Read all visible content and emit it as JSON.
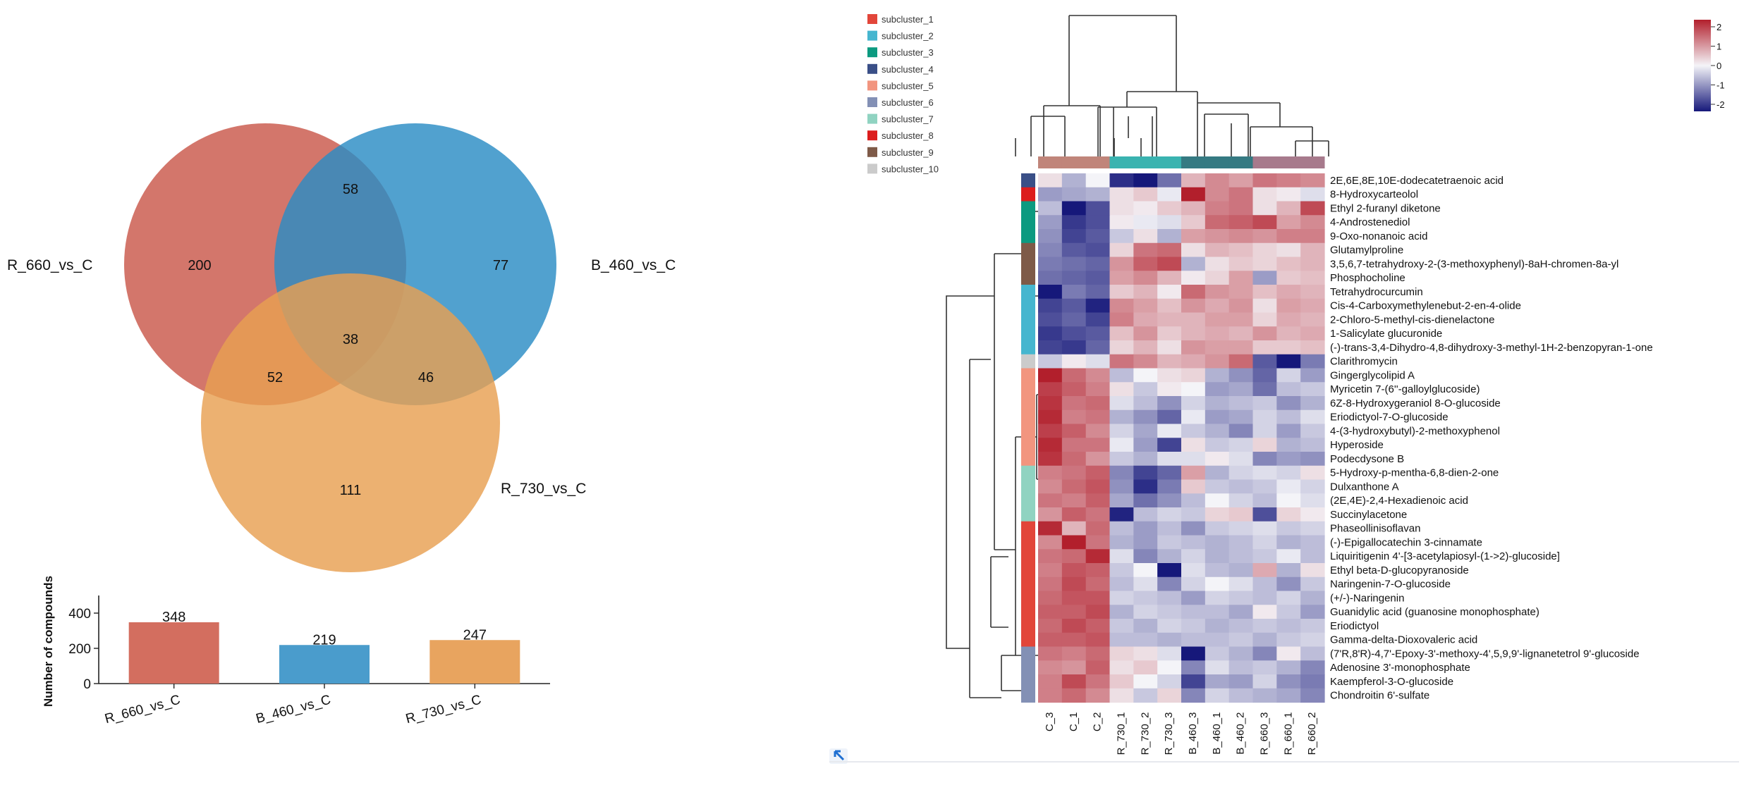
{
  "venn": {
    "sets": [
      {
        "name": "R_660_vs_C",
        "only": 200,
        "color": "#c9584a"
      },
      {
        "name": "B_460_vs_C",
        "only": 77,
        "color": "#2b8cc4"
      },
      {
        "name": "R_730_vs_C",
        "only": 111,
        "color": "#e8a052"
      }
    ],
    "ab": 58,
    "ac": 52,
    "bc": 46,
    "abc": 38
  },
  "chart_data": [
    {
      "type": "bar",
      "title": "",
      "xlabel": "",
      "ylabel": "Number of compounds",
      "categories": [
        "R_660_vs_C",
        "B_460_vs_C",
        "R_730_vs_C"
      ],
      "values": [
        348,
        219,
        247
      ],
      "colors": [
        "#d36e5f",
        "#4a9ccc",
        "#e8a45f"
      ],
      "ylim": [
        0,
        480
      ],
      "yticks": [
        0,
        200,
        400
      ]
    },
    {
      "type": "heatmap",
      "title": "",
      "columns": [
        "C_3",
        "C_1",
        "C_2",
        "R_730_1",
        "R_730_2",
        "R_730_3",
        "B_460_3",
        "B_460_1",
        "B_460_2",
        "R_660_3",
        "R_660_1",
        "R_660_2"
      ],
      "column_groups": [
        "#c0857a",
        "#c0857a",
        "#c0857a",
        "#39b3b0",
        "#39b3b0",
        "#39b3b0",
        "#357a82",
        "#357a82",
        "#357a82",
        "#a77a8c",
        "#a77a8c",
        "#a77a8c"
      ],
      "scale": {
        "min": -2,
        "max": 2,
        "ticks": [
          "2",
          "1",
          "0",
          "-1",
          "-2"
        ],
        "low": "#16187a",
        "mid": "#f4f4f8",
        "high": "#b21f2c"
      },
      "subclusters": [
        {
          "name": "subcluster_1",
          "color": "#e2463a"
        },
        {
          "name": "subcluster_2",
          "color": "#46b6cf"
        },
        {
          "name": "subcluster_3",
          "color": "#0c9a80"
        },
        {
          "name": "subcluster_4",
          "color": "#3a4f87"
        },
        {
          "name": "subcluster_5",
          "color": "#f2957f"
        },
        {
          "name": "subcluster_6",
          "color": "#8390b5"
        },
        {
          "name": "subcluster_7",
          "color": "#90d3c1"
        },
        {
          "name": "subcluster_8",
          "color": "#dc1d1d"
        },
        {
          "name": "subcluster_9",
          "color": "#7e5a48"
        },
        {
          "name": "subcluster_10",
          "color": "#cbcbcb"
        }
      ],
      "rows": [
        {
          "name": "2E,6E,8E,10E-dodecatetraenoic acid",
          "cluster": 4,
          "values": [
            0.2,
            -0.6,
            0.0,
            -1.8,
            -2.0,
            -1.2,
            0.6,
            1.0,
            0.8,
            1.2,
            1.1,
            1.0
          ]
        },
        {
          "name": "8-Hydroxycarteolol",
          "cluster": 8,
          "values": [
            -0.8,
            -0.7,
            -0.6,
            0.2,
            0.4,
            -0.1,
            2.0,
            1.0,
            1.2,
            0.2,
            0.1,
            -0.2
          ]
        },
        {
          "name": "Ethyl 2-furanyl diketone",
          "cluster": 3,
          "values": [
            -0.5,
            -2.0,
            -1.5,
            0.2,
            0.1,
            0.4,
            0.6,
            1.1,
            1.2,
            0.2,
            0.6,
            1.6
          ]
        },
        {
          "name": "4-Androstenediol",
          "cluster": 3,
          "values": [
            -0.8,
            -1.7,
            -1.5,
            0.1,
            -0.1,
            -0.2,
            0.4,
            1.3,
            1.4,
            1.6,
            0.8,
            1.0
          ]
        },
        {
          "name": "9-Oxo-nonanoic acid",
          "cluster": 3,
          "values": [
            -0.9,
            -1.6,
            -1.4,
            -0.4,
            0.2,
            -0.6,
            0.8,
            0.9,
            1.0,
            0.9,
            1.1,
            1.1
          ]
        },
        {
          "name": "Glutamylproline",
          "cluster": 9,
          "values": [
            -1.0,
            -1.4,
            -1.5,
            0.3,
            1.2,
            1.3,
            0.2,
            0.6,
            0.5,
            0.3,
            0.2,
            0.6
          ]
        },
        {
          "name": "3,5,6,7-tetrahydroxy-2-(3-methoxyphenyl)-8aH-chromen-8a-yl",
          "cluster": 9,
          "values": [
            -1.1,
            -1.2,
            -1.3,
            0.9,
            1.4,
            1.6,
            -0.6,
            0.2,
            0.4,
            0.3,
            0.5,
            0.6
          ]
        },
        {
          "name": "Phosphocholine",
          "cluster": 9,
          "values": [
            -1.2,
            -1.3,
            -1.4,
            0.8,
            1.0,
            0.6,
            0.1,
            0.3,
            0.8,
            -0.8,
            0.4,
            0.5
          ]
        },
        {
          "name": "Tetrahydrocurcumin",
          "cluster": 2,
          "values": [
            -2.2,
            -1.1,
            -1.3,
            0.4,
            0.6,
            0.1,
            1.3,
            0.9,
            0.8,
            0.5,
            0.7,
            0.6
          ]
        },
        {
          "name": "Cis-4-Carboxymethylenebut-2-en-4-olide",
          "cluster": 2,
          "values": [
            -1.6,
            -1.4,
            -1.9,
            1.0,
            0.8,
            0.5,
            0.9,
            0.7,
            0.9,
            0.2,
            0.8,
            0.7
          ]
        },
        {
          "name": "2-Chloro-5-methyl-cis-dienelactone",
          "cluster": 2,
          "values": [
            -1.5,
            -1.3,
            -1.6,
            1.1,
            0.7,
            0.6,
            0.6,
            0.8,
            0.8,
            0.3,
            0.7,
            0.6
          ]
        },
        {
          "name": "1-Salicylate glucuronide",
          "cluster": 2,
          "values": [
            -1.7,
            -1.5,
            -1.4,
            0.5,
            0.9,
            0.4,
            0.6,
            0.7,
            0.6,
            0.9,
            0.6,
            0.7
          ]
        },
        {
          "name": "(-)-trans-3,4-Dihydro-4,8-dihydroxy-3-methyl-1H-2-benzopyran-1-one",
          "cluster": 2,
          "values": [
            -1.6,
            -1.7,
            -1.3,
            0.3,
            0.6,
            0.2,
            0.9,
            0.8,
            0.8,
            0.4,
            0.4,
            0.5
          ]
        },
        {
          "name": "Clarithromycin",
          "cluster": 10,
          "values": [
            -0.4,
            0.1,
            -0.2,
            1.2,
            1.0,
            0.6,
            0.7,
            0.9,
            1.3,
            -1.4,
            -2.0,
            -1.1
          ]
        },
        {
          "name": "Gingerglycolipid A",
          "cluster": 5,
          "values": [
            2.0,
            1.3,
            1.0,
            -0.5,
            0.0,
            0.2,
            0.3,
            -0.6,
            -0.9,
            -1.3,
            -0.3,
            -0.8
          ]
        },
        {
          "name": "Myricetin 7-(6''-galloylglucoside)",
          "cluster": 5,
          "values": [
            1.7,
            1.4,
            1.1,
            0.2,
            -0.4,
            0.1,
            0.0,
            -0.8,
            -0.7,
            -1.2,
            -0.5,
            -0.4
          ]
        },
        {
          "name": "6Z-8-Hydroxygeraniol 8-O-glucoside",
          "cluster": 5,
          "values": [
            1.8,
            1.2,
            1.3,
            -0.2,
            -0.5,
            -0.9,
            -0.3,
            -0.6,
            -0.5,
            -0.4,
            -0.9,
            -0.6
          ]
        },
        {
          "name": "Eriodictyol-7-O-glucoside",
          "cluster": 5,
          "values": [
            1.9,
            1.1,
            1.2,
            -0.6,
            -0.9,
            -1.3,
            -0.1,
            -0.8,
            -0.7,
            -0.3,
            -0.5,
            -0.2
          ]
        },
        {
          "name": "4-(3-hydroxybutyl)-2-methoxyphenol",
          "cluster": 5,
          "values": [
            1.7,
            1.4,
            1.0,
            -0.3,
            -0.7,
            -0.1,
            -0.4,
            -0.6,
            -1.0,
            -0.3,
            -0.8,
            -0.4
          ]
        },
        {
          "name": "Hyperoside",
          "cluster": 5,
          "values": [
            1.9,
            1.2,
            1.2,
            -0.1,
            -0.8,
            -1.6,
            0.2,
            -0.4,
            -0.3,
            0.3,
            -0.6,
            -0.5
          ]
        },
        {
          "name": "Podecdysone B",
          "cluster": 5,
          "values": [
            1.8,
            1.3,
            0.9,
            -0.4,
            -0.6,
            -0.2,
            -0.2,
            0.1,
            -0.2,
            -1.0,
            -0.8,
            -0.9
          ]
        },
        {
          "name": "5-Hydroxy-p-mentha-6,8-dien-2-one",
          "cluster": 7,
          "values": [
            1.1,
            1.2,
            1.4,
            -1.0,
            -1.6,
            -1.3,
            0.8,
            -0.6,
            -0.3,
            -0.2,
            -0.3,
            0.2
          ]
        },
        {
          "name": "Dulxanthone A",
          "cluster": 7,
          "values": [
            1.0,
            1.3,
            1.5,
            -0.9,
            -1.8,
            -1.1,
            0.4,
            -0.4,
            -0.5,
            -0.4,
            -0.1,
            -0.3
          ]
        },
        {
          "name": "(2E,4E)-2,4-Hexadienoic acid",
          "cluster": 7,
          "values": [
            1.2,
            1.1,
            1.4,
            -0.7,
            -1.2,
            -0.9,
            -0.5,
            0.0,
            -0.3,
            -0.5,
            0.0,
            -0.2
          ]
        },
        {
          "name": "Succinylacetone",
          "cluster": 7,
          "values": [
            0.9,
            1.4,
            1.2,
            -1.9,
            -0.5,
            -0.3,
            -0.4,
            0.3,
            0.4,
            -1.5,
            0.3,
            0.1
          ]
        },
        {
          "name": "Phaseollinisoflavan",
          "cluster": 1,
          "values": [
            1.9,
            0.6,
            1.3,
            -0.5,
            -0.8,
            -0.5,
            -0.9,
            -0.4,
            -0.3,
            -0.2,
            -0.4,
            -0.3
          ]
        },
        {
          "name": "(-)-Epigallocatechin 3-cinnamate",
          "cluster": 1,
          "values": [
            1.0,
            2.0,
            1.2,
            -0.6,
            -0.8,
            -0.4,
            -0.5,
            -0.6,
            -0.5,
            -0.3,
            -0.6,
            -0.5
          ]
        },
        {
          "name": "Liquiritigenin 4'-[3-acetylapiosyl-(1->2)-glucoside]",
          "cluster": 1,
          "values": [
            1.2,
            1.3,
            1.9,
            -0.2,
            -1.0,
            -0.6,
            -0.3,
            -0.6,
            -0.5,
            -0.4,
            -0.1,
            -0.5
          ]
        },
        {
          "name": "Ethyl beta-D-glucopyranoside",
          "cluster": 1,
          "values": [
            1.1,
            1.5,
            1.4,
            -0.4,
            0.0,
            -2.0,
            -0.2,
            -0.5,
            -0.6,
            0.7,
            -0.6,
            0.2
          ]
        },
        {
          "name": "Naringenin-7-O-glucoside",
          "cluster": 1,
          "values": [
            1.2,
            1.6,
            1.3,
            -0.5,
            -0.2,
            -1.0,
            -0.3,
            0.0,
            -0.2,
            -0.5,
            -0.9,
            -0.4
          ]
        },
        {
          "name": "(+/-)-Naringenin",
          "cluster": 1,
          "values": [
            1.3,
            1.5,
            1.5,
            -0.3,
            -0.4,
            -0.5,
            -0.8,
            -0.3,
            -0.4,
            -0.5,
            -0.3,
            -0.6
          ]
        },
        {
          "name": "Guanidylic acid (guanosine monophosphate)",
          "cluster": 1,
          "values": [
            1.4,
            1.4,
            1.6,
            -0.6,
            -0.3,
            -0.4,
            -0.5,
            -0.5,
            -0.7,
            0.1,
            -0.4,
            -0.8
          ]
        },
        {
          "name": "Eriodictyol",
          "cluster": 1,
          "values": [
            1.3,
            1.6,
            1.4,
            -0.4,
            -0.6,
            -0.3,
            -0.4,
            -0.6,
            -0.5,
            -0.4,
            -0.5,
            -0.4
          ]
        },
        {
          "name": "Gamma-delta-Dioxovaleric acid",
          "cluster": 1,
          "values": [
            1.4,
            1.4,
            1.5,
            -0.5,
            -0.5,
            -0.6,
            -0.5,
            -0.5,
            -0.4,
            -0.6,
            -0.4,
            -0.3
          ]
        },
        {
          "name": "(7'R,8'R)-4,7'-Epoxy-3'-methoxy-4',5,9,9'-lignanetetrol 9'-glucoside",
          "cluster": 6,
          "values": [
            1.2,
            1.1,
            1.3,
            0.3,
            0.2,
            -0.2,
            -2.4,
            -0.4,
            -0.6,
            -1.0,
            0.1,
            -0.5
          ]
        },
        {
          "name": "Adenosine 3'-monophosphate",
          "cluster": 6,
          "values": [
            1.0,
            0.9,
            1.4,
            0.2,
            0.4,
            0.0,
            -1.0,
            -0.2,
            -0.5,
            -0.4,
            -0.6,
            -1.0
          ]
        },
        {
          "name": "Kaempferol-3-O-glucoside",
          "cluster": 6,
          "values": [
            1.1,
            1.6,
            1.2,
            0.4,
            0.0,
            -0.3,
            -1.6,
            -0.7,
            -0.8,
            -0.3,
            -0.9,
            -1.1
          ]
        },
        {
          "name": "Chondroitin 6'-sulfate",
          "cluster": 6,
          "values": [
            1.1,
            1.3,
            1.0,
            0.2,
            -0.4,
            0.3,
            -1.0,
            -0.3,
            -0.5,
            -0.6,
            -0.7,
            -1.0
          ]
        }
      ]
    }
  ]
}
